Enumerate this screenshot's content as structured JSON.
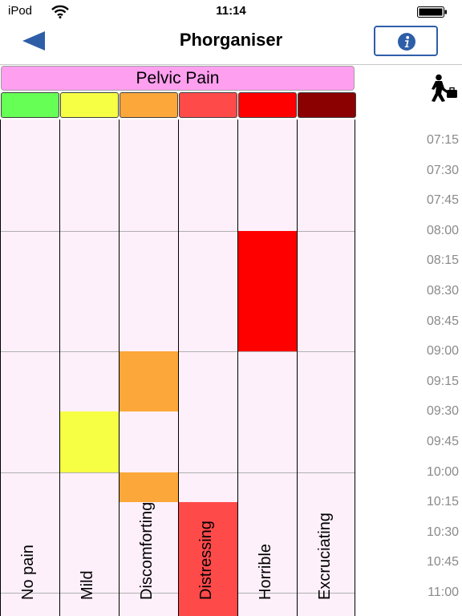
{
  "status_bar": {
    "carrier": "iPod",
    "time": "11:14"
  },
  "nav": {
    "title": "Phorganiser",
    "back_icon": "back-arrow-icon",
    "info_icon": "info-icon"
  },
  "chart": {
    "header": "Pelvic Pain",
    "levels": [
      {
        "label": "No pain",
        "color": "#66ff55"
      },
      {
        "label": "Mild",
        "color": "#f6ff44"
      },
      {
        "label": "Discomforting",
        "color": "#fca73a"
      },
      {
        "label": "Distressing",
        "color": "#ff4a4a"
      },
      {
        "label": "Horrible",
        "color": "#ff0000"
      },
      {
        "label": "Excruciating",
        "color": "#8b0000"
      }
    ],
    "times": [
      "07:15",
      "07:30",
      "07:45",
      "08:00",
      "08:15",
      "08:30",
      "08:45",
      "09:00",
      "09:15",
      "09:30",
      "09:45",
      "10:00",
      "10:15",
      "10:30",
      "10:45",
      "11:00"
    ],
    "start_time": "07:00",
    "entries": [
      {
        "level": 4,
        "from": "08:00",
        "to": "09:00"
      },
      {
        "level": 2,
        "from": "09:00",
        "to": "09:30"
      },
      {
        "level": 1,
        "from": "09:30",
        "to": "10:00"
      },
      {
        "level": 2,
        "from": "10:00",
        "to": "10:15"
      },
      {
        "level": 3,
        "from": "10:15",
        "to": "11:15"
      }
    ]
  },
  "icons": {
    "activity": "walker-briefcase-icon",
    "wifi": "wifi-icon",
    "battery": "battery-icon"
  }
}
